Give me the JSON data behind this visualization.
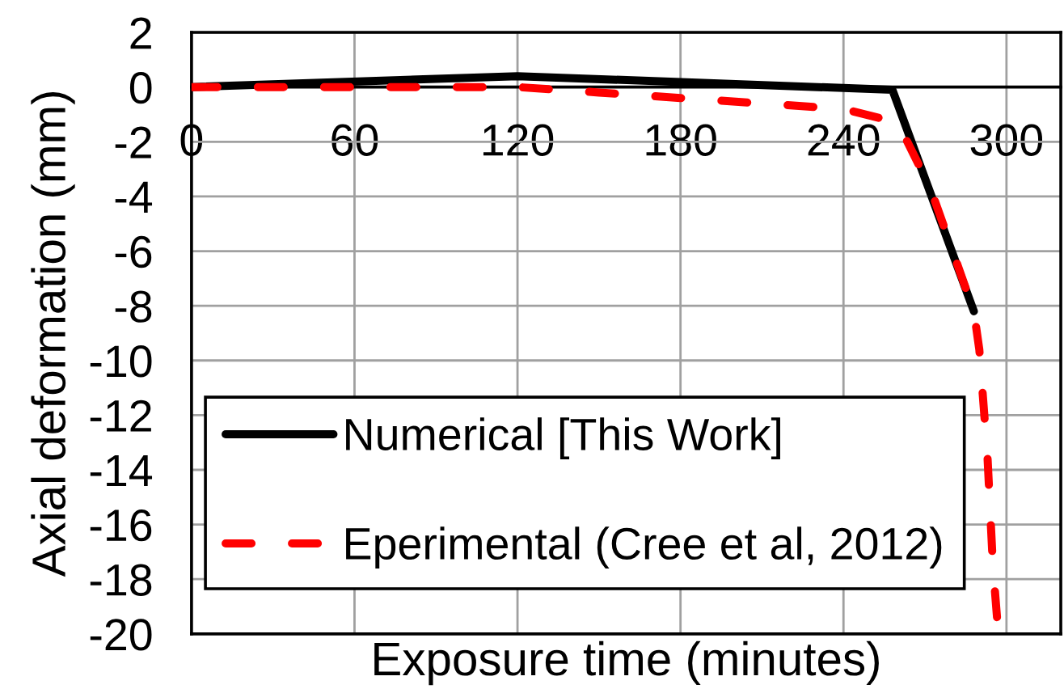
{
  "chart_data": {
    "type": "line",
    "xlabel": "Exposure time (minutes)",
    "ylabel": "Axial deformation (mm)",
    "xlim": [
      0,
      320
    ],
    "xticks": [
      0,
      60,
      120,
      180,
      240,
      300
    ],
    "ylim": [
      -20,
      2
    ],
    "yticks": [
      -20,
      -18,
      -16,
      -14,
      -12,
      -10,
      -8,
      -6,
      -4,
      -2,
      0,
      2
    ],
    "grid": true,
    "legend": "bottom left",
    "series": [
      {
        "name": "Numerical [This Work]",
        "color": "#000000",
        "line_style": "solid",
        "x": [
          0,
          120,
          258,
          288
        ],
        "values": [
          0,
          0.4,
          -0.1,
          -8.2
        ]
      },
      {
        "name": "Eperimental (Cree et al, 2012)",
        "color": "#ff0000",
        "line_style": "dashed",
        "x": [
          0,
          60,
          120,
          150,
          180,
          210,
          240,
          260,
          272,
          288,
          290,
          293,
          295,
          297
        ],
        "values": [
          0,
          0,
          0,
          -0.2,
          -0.4,
          -0.6,
          -0.8,
          -1.3,
          -3.7,
          -8.2,
          -9.6,
          -13.5,
          -17.5,
          -20
        ]
      }
    ]
  }
}
